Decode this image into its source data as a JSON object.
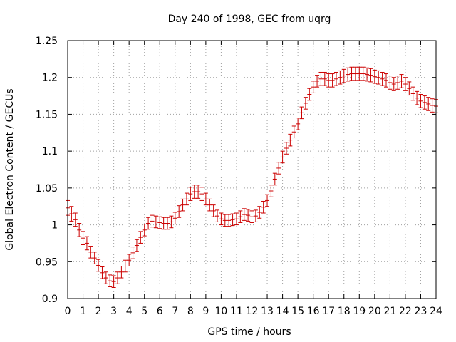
{
  "chart_data": {
    "type": "scatter",
    "title": "Day 240 of 1998, GEC from uqrg",
    "xlabel": "GPS time / hours",
    "ylabel": "Global Electron Content / GECUs",
    "xlim": [
      0,
      24
    ],
    "ylim": [
      0.9,
      1.25
    ],
    "x_ticks": [
      "0",
      "1",
      "2",
      "3",
      "4",
      "5",
      "6",
      "7",
      "8",
      "9",
      "10",
      "11",
      "12",
      "13",
      "14",
      "15",
      "16",
      "17",
      "18",
      "19",
      "20",
      "21",
      "22",
      "23",
      "24"
    ],
    "y_ticks": [
      "0.9",
      "0.95",
      "1",
      "1.05",
      "1.1",
      "1.15",
      "1.2",
      "1.25"
    ],
    "grid": true,
    "error_bars": true,
    "color": "#cc0000",
    "series": [
      {
        "x": [
          0.0,
          0.25,
          0.5,
          0.75,
          1.0,
          1.25,
          1.5,
          1.75,
          2.0,
          2.25,
          2.5,
          2.75,
          3.0,
          3.25,
          3.5,
          3.75,
          4.0,
          4.25,
          4.5,
          4.75,
          5.0,
          5.25,
          5.5,
          5.75,
          6.0,
          6.25,
          6.5,
          6.75,
          7.0,
          7.25,
          7.5,
          7.75,
          8.0,
          8.25,
          8.5,
          8.75,
          9.0,
          9.25,
          9.5,
          9.75,
          10.0,
          10.25,
          10.5,
          10.75,
          11.0,
          11.25,
          11.5,
          11.75,
          12.0,
          12.25,
          12.5,
          12.75,
          13.0,
          13.25,
          13.5,
          13.75,
          14.0,
          14.25,
          14.5,
          14.75,
          15.0,
          15.25,
          15.5,
          15.75,
          16.0,
          16.25,
          16.5,
          16.75,
          17.0,
          17.25,
          17.5,
          17.75,
          18.0,
          18.25,
          18.5,
          18.75,
          19.0,
          19.25,
          19.5,
          19.75,
          20.0,
          20.25,
          20.5,
          20.75,
          21.0,
          21.25,
          21.5,
          21.75,
          22.0,
          22.25,
          22.5,
          22.75,
          23.0,
          23.25,
          23.5,
          23.75,
          24.0
        ],
        "y": [
          1.023,
          1.015,
          1.007,
          0.993,
          0.982,
          0.975,
          0.963,
          0.955,
          0.945,
          0.935,
          0.928,
          0.924,
          0.923,
          0.928,
          0.936,
          0.944,
          0.952,
          0.962,
          0.972,
          0.983,
          0.993,
          1.002,
          1.005,
          1.004,
          1.003,
          1.002,
          1.002,
          1.004,
          1.009,
          1.018,
          1.027,
          1.035,
          1.042,
          1.045,
          1.045,
          1.042,
          1.035,
          1.027,
          1.019,
          1.012,
          1.008,
          1.006,
          1.006,
          1.007,
          1.008,
          1.011,
          1.014,
          1.013,
          1.011,
          1.012,
          1.017,
          1.024,
          1.033,
          1.046,
          1.062,
          1.077,
          1.092,
          1.104,
          1.115,
          1.126,
          1.137,
          1.152,
          1.165,
          1.177,
          1.187,
          1.195,
          1.198,
          1.198,
          1.196,
          1.196,
          1.198,
          1.2,
          1.202,
          1.204,
          1.205,
          1.205,
          1.205,
          1.205,
          1.204,
          1.203,
          1.201,
          1.2,
          1.198,
          1.196,
          1.193,
          1.191,
          1.193,
          1.195,
          1.191,
          1.185,
          1.178,
          1.172,
          1.168,
          1.166,
          1.164,
          1.162,
          1.161
        ],
        "error": [
          0.01,
          0.01,
          0.009,
          0.009,
          0.009,
          0.009,
          0.008,
          0.008,
          0.008,
          0.008,
          0.008,
          0.008,
          0.008,
          0.008,
          0.008,
          0.008,
          0.008,
          0.008,
          0.008,
          0.008,
          0.008,
          0.008,
          0.008,
          0.008,
          0.008,
          0.008,
          0.008,
          0.008,
          0.008,
          0.008,
          0.008,
          0.008,
          0.009,
          0.009,
          0.009,
          0.009,
          0.008,
          0.008,
          0.008,
          0.008,
          0.008,
          0.008,
          0.008,
          0.008,
          0.008,
          0.008,
          0.008,
          0.008,
          0.008,
          0.008,
          0.008,
          0.008,
          0.008,
          0.008,
          0.008,
          0.008,
          0.008,
          0.008,
          0.008,
          0.008,
          0.008,
          0.008,
          0.008,
          0.008,
          0.008,
          0.008,
          0.009,
          0.009,
          0.009,
          0.009,
          0.009,
          0.009,
          0.009,
          0.009,
          0.009,
          0.009,
          0.009,
          0.009,
          0.009,
          0.009,
          0.009,
          0.009,
          0.009,
          0.009,
          0.009,
          0.009,
          0.009,
          0.009,
          0.009,
          0.009,
          0.009,
          0.009,
          0.009,
          0.009,
          0.009,
          0.009,
          0.009
        ]
      }
    ]
  }
}
